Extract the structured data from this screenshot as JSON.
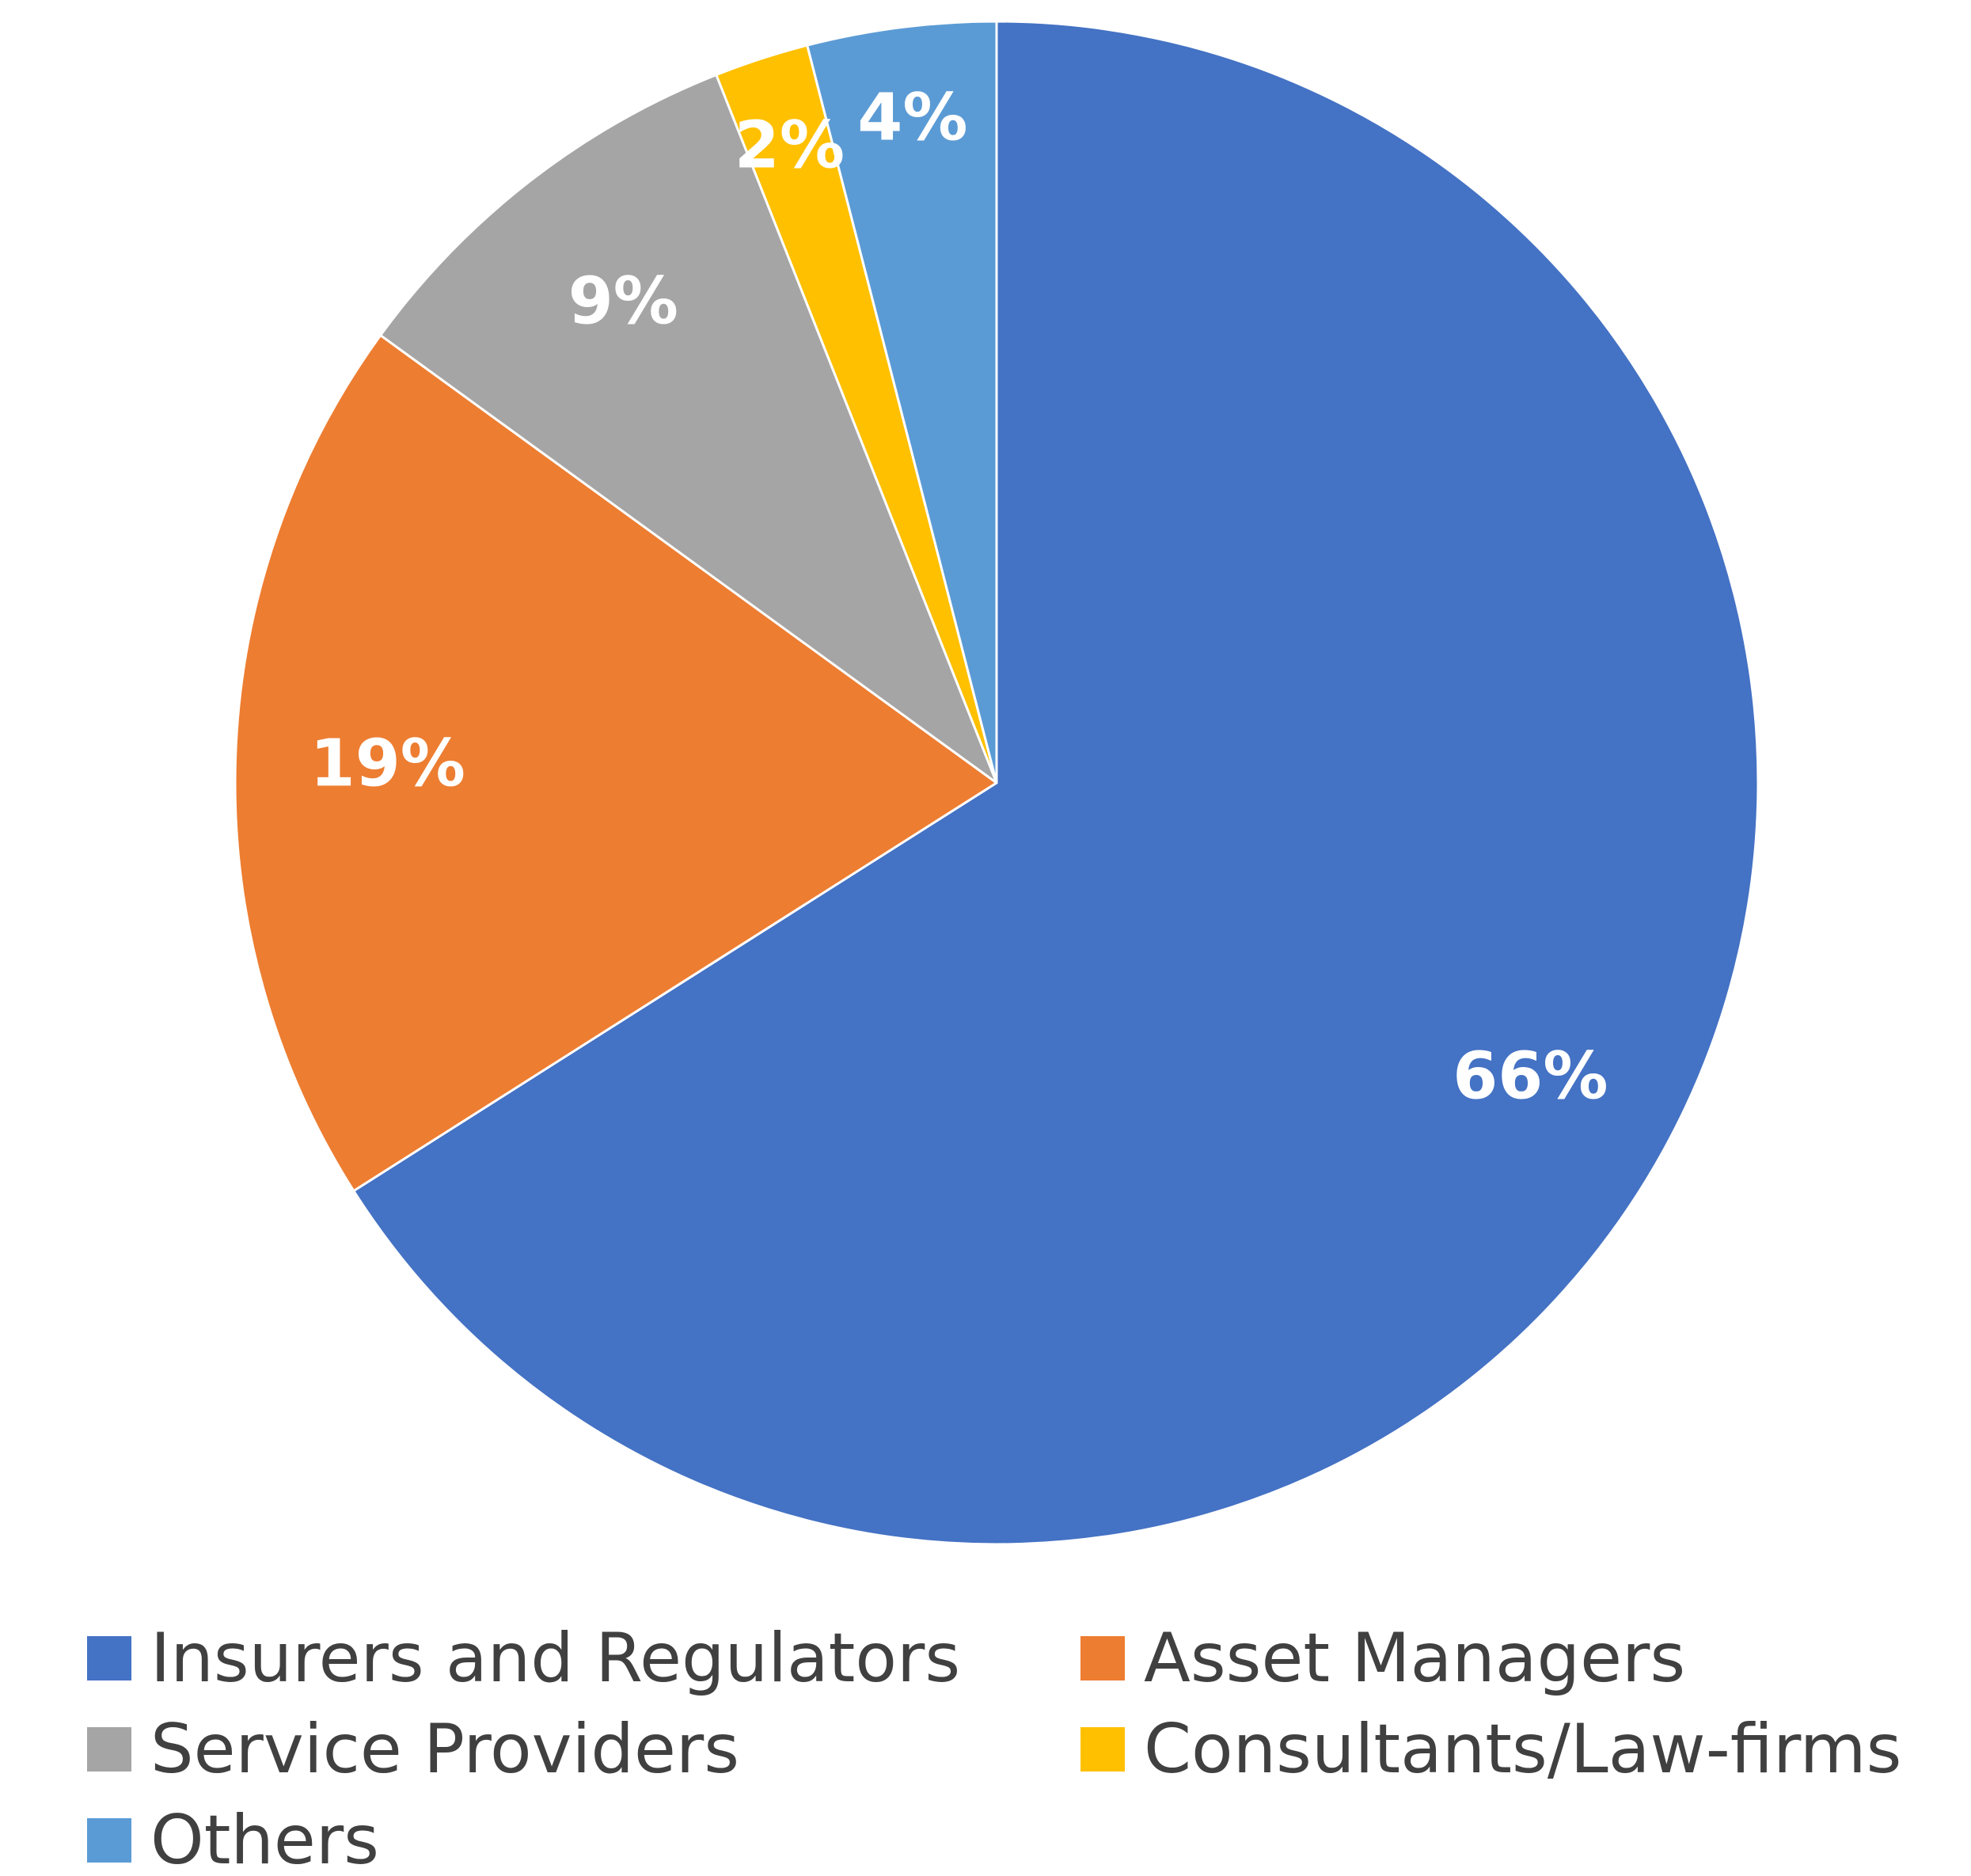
{
  "chart_data": {
    "type": "pie",
    "start_angle_deg": 0,
    "direction": "clockwise",
    "slices": [
      {
        "label": "Insurers and Regulators",
        "value": 66,
        "display": "66%",
        "color": "#4472C4"
      },
      {
        "label": "Asset Managers",
        "value": 19,
        "display": "19%",
        "color": "#ED7D31"
      },
      {
        "label": "Service Providers",
        "value": 9,
        "display": "9%",
        "color": "#A5A5A5"
      },
      {
        "label": "Consultants/Law-firms",
        "value": 2,
        "display": "2%",
        "color": "#FFC000"
      },
      {
        "label": "Others",
        "value": 4,
        "display": "4%",
        "color": "#5B9BD5"
      }
    ],
    "legend": {
      "position": "bottom",
      "columns": 2
    }
  }
}
